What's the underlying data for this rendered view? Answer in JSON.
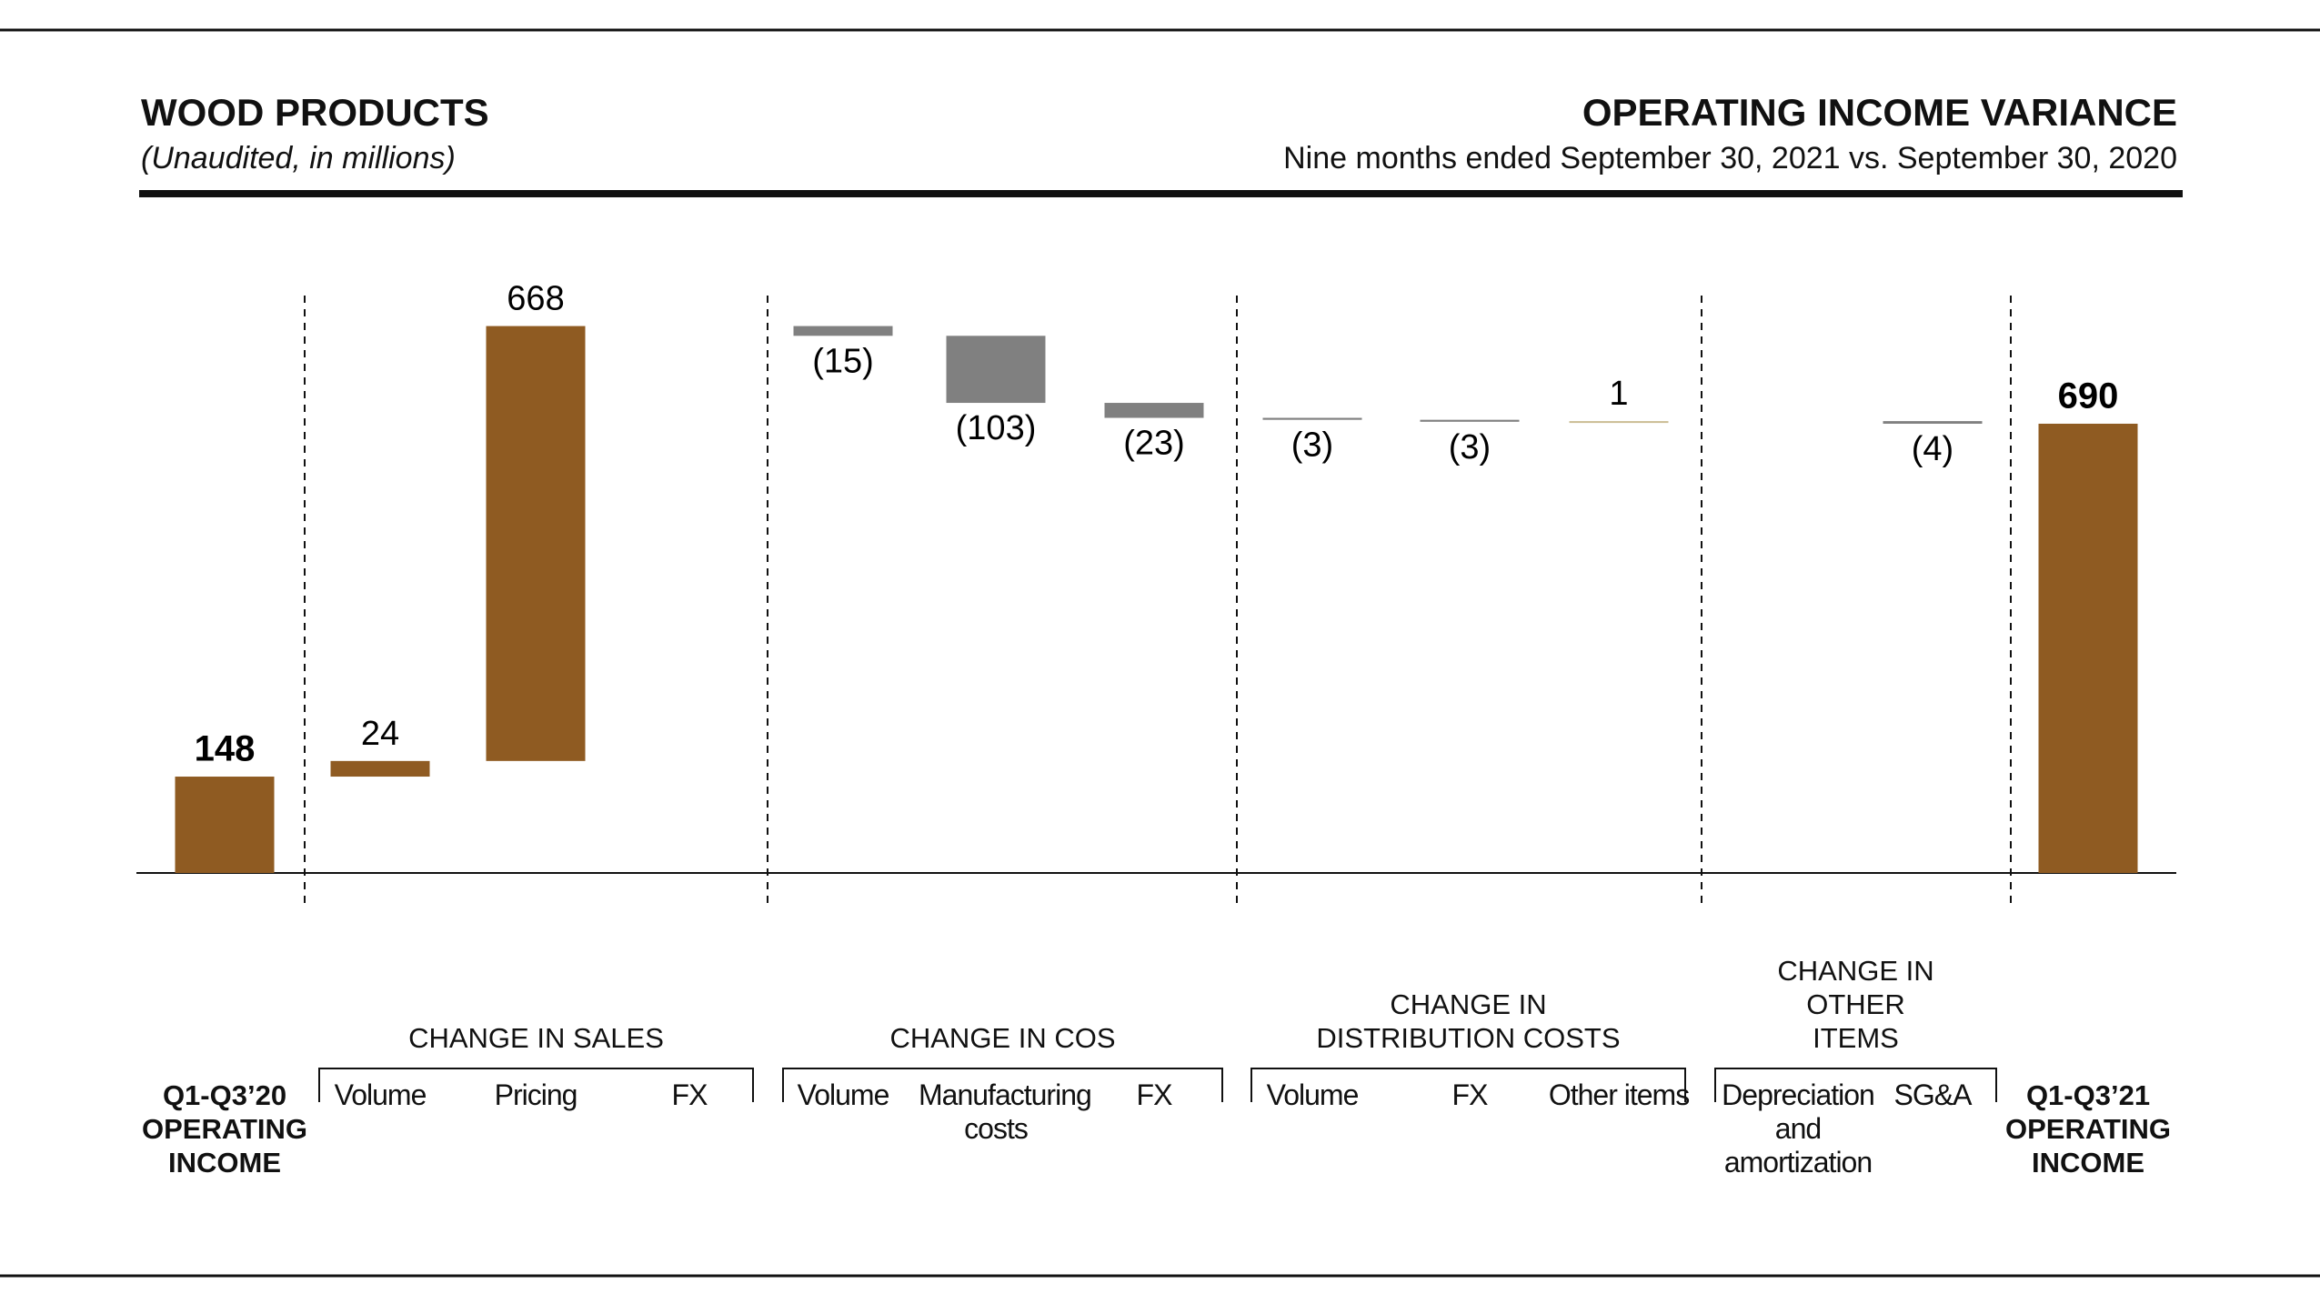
{
  "chart_data": {
    "type": "waterfall",
    "title": "WOOD PRODUCTS",
    "subtitle": "(Unaudited, in millions)",
    "right_title": "OPERATING INCOME VARIANCE",
    "right_subtitle": "Nine months ended September 30, 2021 vs. September 30, 2020",
    "ylim": [
      0,
      1000
    ],
    "color_total": "#8f5b22",
    "color_positive": "#8f5b22",
    "color_negative": "#808080",
    "start": {
      "label": "Q1-Q3’20 OPERATING INCOME",
      "value": 148
    },
    "end": {
      "label": "Q1-Q3’21 OPERATING INCOME",
      "value": 690
    },
    "groups": [
      {
        "name": "CHANGE IN SALES",
        "categories": [
          "Volume",
          "Pricing",
          "FX"
        ],
        "values": [
          24,
          668,
          null
        ],
        "value_labels": [
          "24",
          "668",
          null
        ]
      },
      {
        "name": "CHANGE IN COS",
        "categories": [
          "Volume",
          "Manufacturing costs",
          "FX"
        ],
        "values": [
          -15,
          -103,
          -23
        ],
        "value_labels": [
          "(15)",
          "(103)",
          "(23)"
        ]
      },
      {
        "name": "CHANGE IN DISTRIBUTION COSTS",
        "categories": [
          "Volume",
          "FX",
          "Other items"
        ],
        "values": [
          -3,
          -3,
          1
        ],
        "value_labels": [
          "(3)",
          "(3)",
          "1"
        ],
        "color_positive": "#cbbd94"
      },
      {
        "name": "CHANGE IN OTHER ITEMS",
        "categories": [
          "Depreciation and amortization",
          "SG&A"
        ],
        "values": [
          null,
          -4
        ],
        "value_labels": [
          null,
          "(4)"
        ]
      }
    ]
  }
}
